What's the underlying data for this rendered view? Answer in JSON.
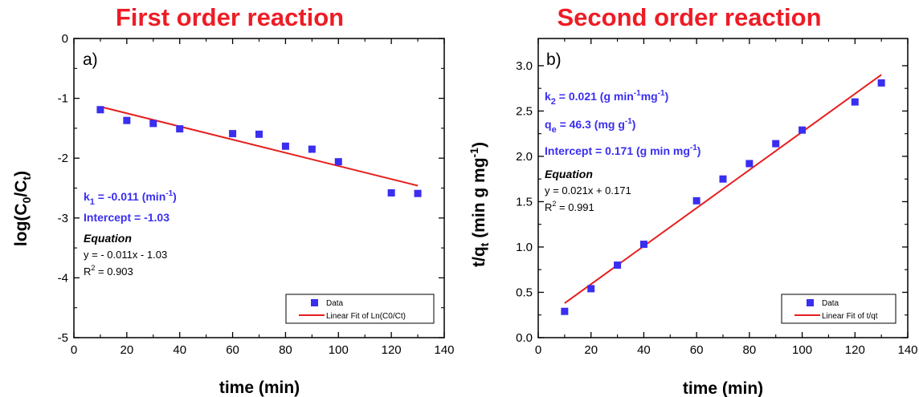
{
  "colors": {
    "title": "#ee1c25",
    "marker": "#3a2ef0",
    "fit_line": "#e61e1e",
    "annotation": "#3a2ef0",
    "axes": "#000000"
  },
  "chart_data": [
    {
      "type": "scatter",
      "title": "First order reaction",
      "panel_label": "a)",
      "xlabel": "time (min)",
      "ylabel_parts": {
        "main": "log(C",
        "sub1": "0",
        "mid": "/C",
        "sub2": "t",
        "close": ")"
      },
      "xlim": [
        0,
        140
      ],
      "ylim": [
        -5,
        0
      ],
      "xticks": [
        "0",
        "20",
        "40",
        "60",
        "80",
        "100",
        "120",
        "140"
      ],
      "yticks": [
        "0",
        "-1",
        "-2",
        "-3",
        "-4",
        "-5"
      ],
      "series": [
        {
          "name": "Data",
          "x": [
            10,
            20,
            30,
            40,
            60,
            70,
            80,
            90,
            100,
            120,
            130
          ],
          "y": [
            -1.19,
            -1.37,
            -1.42,
            -1.51,
            -1.59,
            -1.6,
            -1.8,
            -1.85,
            -2.06,
            -2.58,
            -2.59
          ]
        },
        {
          "name": "Linear Fit of Ln(C0/Ct)",
          "kind": "line",
          "x": [
            10,
            130
          ],
          "y": [
            -1.14,
            -2.46
          ]
        }
      ],
      "legend_position": "bottom-right",
      "annotations": {
        "k1": {
          "pre": "k",
          "sub": "1",
          "mid": " = -0.011 (min",
          "sup": "-1",
          "post": ")"
        },
        "intercept": "Intercept  = -1.03",
        "equation_label": "Equation",
        "equation": "y = - 0.011x - 1.03",
        "r2": {
          "pre": "R",
          "sup": "2",
          "post": " = 0.903"
        }
      }
    },
    {
      "type": "scatter",
      "title": "Second order reaction",
      "panel_label": "b)",
      "xlabel": "time (min)",
      "ylabel_parts": {
        "main": "t/q",
        "sub1": "t",
        "mid": " (min g mg",
        "sup": "-1",
        "close": ")"
      },
      "xlim": [
        0,
        140
      ],
      "ylim": [
        0,
        3.3
      ],
      "xticks": [
        "0",
        "20",
        "40",
        "60",
        "80",
        "100",
        "120",
        "140"
      ],
      "yticks": [
        "0.0",
        "0.5",
        "1.0",
        "1.5",
        "2.0",
        "2.5",
        "3.0"
      ],
      "series": [
        {
          "name": "Data",
          "x": [
            10,
            20,
            30,
            40,
            60,
            70,
            80,
            90,
            100,
            120,
            130
          ],
          "y": [
            0.29,
            0.54,
            0.8,
            1.03,
            1.51,
            1.75,
            1.92,
            2.14,
            2.29,
            2.6,
            2.81
          ]
        },
        {
          "name": "Linear Fit of t/qt",
          "kind": "line",
          "x": [
            10,
            130
          ],
          "y": [
            0.38,
            2.9
          ]
        }
      ],
      "legend_position": "bottom-right",
      "annotations": {
        "k2": {
          "pre": "k",
          "sub": "2",
          "mid": " = 0.021 (g min",
          "sup1": "-1",
          "mid2": "mg",
          "sup2": "-1",
          "post": ")"
        },
        "qe": {
          "pre": "q",
          "sub": "e",
          "mid": " = 46.3 (mg g",
          "sup": "-1",
          "post": ")"
        },
        "intercept": {
          "mid": "Intercept = 0.171 (g min mg",
          "sup": "-1",
          "post": ")"
        },
        "equation_label": "Equation",
        "equation": "y = 0.021x + 0.171",
        "r2": {
          "pre": "R",
          "sup": "2",
          "post": " = 0.991"
        }
      }
    }
  ]
}
